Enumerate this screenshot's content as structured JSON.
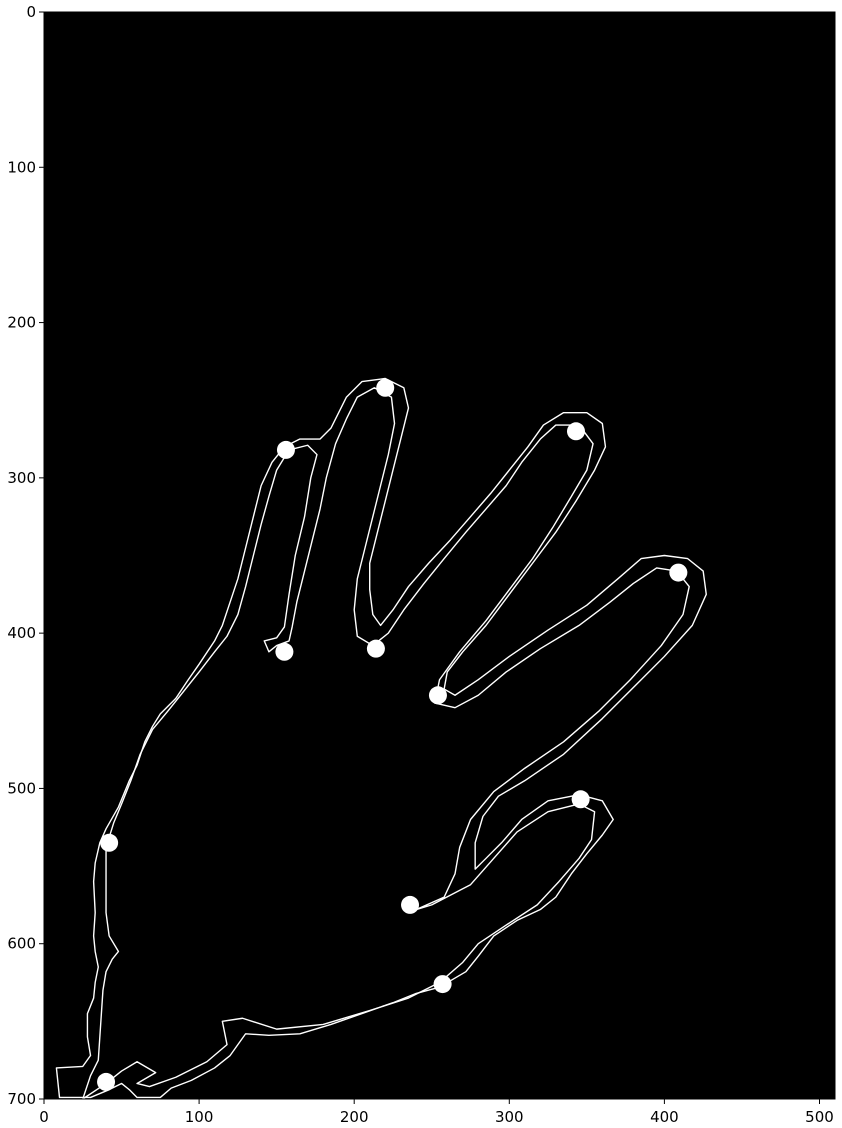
{
  "chart_data": {
    "type": "image",
    "background_color": "#000000",
    "contour_color": "#ffffff",
    "marker_color": "#ffffff",
    "xlim": [
      0,
      510
    ],
    "ylim": [
      700,
      0
    ],
    "x_ticks": [
      0,
      100,
      200,
      300,
      400,
      500
    ],
    "y_ticks": [
      0,
      100,
      200,
      300,
      400,
      500,
      600,
      700
    ],
    "grid": false,
    "outer_contour": [
      [
        10,
        699
      ],
      [
        8,
        680
      ],
      [
        25,
        679
      ],
      [
        30,
        672
      ],
      [
        28,
        660
      ],
      [
        28,
        645
      ],
      [
        32,
        635
      ],
      [
        33,
        625
      ],
      [
        35,
        615
      ],
      [
        33,
        605
      ],
      [
        32,
        595
      ],
      [
        33,
        580
      ],
      [
        32,
        560
      ],
      [
        33,
        548
      ],
      [
        36,
        535
      ],
      [
        40,
        526
      ],
      [
        48,
        512
      ],
      [
        55,
        495
      ],
      [
        60,
        485
      ],
      [
        65,
        470
      ],
      [
        70,
        460
      ],
      [
        75,
        452
      ],
      [
        85,
        442
      ],
      [
        93,
        430
      ],
      [
        100,
        420
      ],
      [
        110,
        405
      ],
      [
        115,
        395
      ],
      [
        120,
        380
      ],
      [
        125,
        365
      ],
      [
        130,
        345
      ],
      [
        135,
        325
      ],
      [
        140,
        305
      ],
      [
        147,
        290
      ],
      [
        155,
        280
      ],
      [
        165,
        275
      ],
      [
        178,
        275
      ],
      [
        185,
        268
      ],
      [
        195,
        248
      ],
      [
        205,
        238
      ],
      [
        220,
        236
      ],
      [
        232,
        242
      ],
      [
        235,
        255
      ],
      [
        230,
        275
      ],
      [
        225,
        295
      ],
      [
        220,
        315
      ],
      [
        215,
        335
      ],
      [
        210,
        355
      ],
      [
        210,
        372
      ],
      [
        212,
        388
      ],
      [
        217,
        395
      ],
      [
        225,
        385
      ],
      [
        235,
        370
      ],
      [
        248,
        355
      ],
      [
        262,
        340
      ],
      [
        275,
        325
      ],
      [
        288,
        310
      ],
      [
        300,
        295
      ],
      [
        312,
        280
      ],
      [
        322,
        266
      ],
      [
        335,
        258
      ],
      [
        350,
        258
      ],
      [
        360,
        265
      ],
      [
        362,
        280
      ],
      [
        355,
        295
      ],
      [
        343,
        315
      ],
      [
        330,
        335
      ],
      [
        315,
        355
      ],
      [
        300,
        375
      ],
      [
        285,
        395
      ],
      [
        270,
        412
      ],
      [
        260,
        425
      ],
      [
        258,
        436
      ],
      [
        265,
        440
      ],
      [
        280,
        430
      ],
      [
        300,
        415
      ],
      [
        325,
        398
      ],
      [
        350,
        382
      ],
      [
        370,
        365
      ],
      [
        385,
        352
      ],
      [
        400,
        350
      ],
      [
        415,
        352
      ],
      [
        425,
        360
      ],
      [
        427,
        375
      ],
      [
        418,
        395
      ],
      [
        400,
        415
      ],
      [
        380,
        435
      ],
      [
        360,
        455
      ],
      [
        335,
        478
      ],
      [
        310,
        495
      ],
      [
        293,
        505
      ],
      [
        283,
        518
      ],
      [
        278,
        535
      ],
      [
        278,
        552
      ],
      [
        285,
        545
      ],
      [
        295,
        535
      ],
      [
        308,
        520
      ],
      [
        325,
        508
      ],
      [
        345,
        504
      ],
      [
        360,
        508
      ],
      [
        367,
        520
      ],
      [
        360,
        530
      ],
      [
        350,
        542
      ],
      [
        340,
        555
      ],
      [
        330,
        570
      ],
      [
        320,
        578
      ],
      [
        305,
        585
      ],
      [
        290,
        595
      ],
      [
        280,
        608
      ],
      [
        272,
        618
      ],
      [
        255,
        628
      ],
      [
        240,
        632
      ],
      [
        225,
        638
      ],
      [
        205,
        645
      ],
      [
        185,
        652
      ],
      [
        165,
        658
      ],
      [
        145,
        659
      ],
      [
        130,
        658
      ],
      [
        125,
        665
      ],
      [
        120,
        672
      ],
      [
        110,
        680
      ],
      [
        95,
        688
      ],
      [
        82,
        693
      ],
      [
        75,
        699
      ],
      [
        60,
        699
      ],
      [
        55,
        694
      ],
      [
        50,
        690
      ],
      [
        42,
        694
      ],
      [
        30,
        699
      ],
      [
        10,
        699
      ]
    ],
    "inner_contour": [
      [
        25,
        700
      ],
      [
        40,
        690
      ],
      [
        50,
        682
      ],
      [
        60,
        676
      ],
      [
        72,
        683
      ],
      [
        60,
        690
      ],
      [
        68,
        692
      ],
      [
        85,
        686
      ],
      [
        105,
        676
      ],
      [
        118,
        665
      ],
      [
        115,
        650
      ],
      [
        128,
        648
      ],
      [
        150,
        655
      ],
      [
        180,
        652
      ],
      [
        210,
        643
      ],
      [
        235,
        635
      ],
      [
        255,
        625
      ],
      [
        270,
        612
      ],
      [
        280,
        600
      ],
      [
        298,
        588
      ],
      [
        318,
        575
      ],
      [
        332,
        560
      ],
      [
        345,
        545
      ],
      [
        353,
        533
      ],
      [
        355,
        515
      ],
      [
        345,
        510
      ],
      [
        325,
        515
      ],
      [
        305,
        528
      ],
      [
        290,
        545
      ],
      [
        275,
        562
      ],
      [
        250,
        575
      ],
      [
        240,
        578
      ],
      [
        258,
        570
      ],
      [
        265,
        555
      ],
      [
        268,
        538
      ],
      [
        275,
        520
      ],
      [
        290,
        502
      ],
      [
        310,
        487
      ],
      [
        335,
        470
      ],
      [
        358,
        450
      ],
      [
        378,
        430
      ],
      [
        398,
        408
      ],
      [
        412,
        388
      ],
      [
        416,
        370
      ],
      [
        408,
        360
      ],
      [
        395,
        358
      ],
      [
        380,
        368
      ],
      [
        365,
        380
      ],
      [
        345,
        395
      ],
      [
        320,
        410
      ],
      [
        298,
        425
      ],
      [
        280,
        440
      ],
      [
        265,
        448
      ],
      [
        252,
        445
      ],
      [
        255,
        430
      ],
      [
        268,
        412
      ],
      [
        285,
        392
      ],
      [
        300,
        372
      ],
      [
        315,
        352
      ],
      [
        328,
        332
      ],
      [
        340,
        312
      ],
      [
        350,
        295
      ],
      [
        354,
        278
      ],
      [
        345,
        266
      ],
      [
        330,
        266
      ],
      [
        320,
        275
      ],
      [
        308,
        290
      ],
      [
        298,
        305
      ],
      [
        285,
        320
      ],
      [
        272,
        335
      ],
      [
        258,
        352
      ],
      [
        245,
        368
      ],
      [
        232,
        385
      ],
      [
        222,
        400
      ],
      [
        212,
        408
      ],
      [
        202,
        402
      ],
      [
        200,
        385
      ],
      [
        202,
        365
      ],
      [
        207,
        345
      ],
      [
        212,
        325
      ],
      [
        217,
        305
      ],
      [
        222,
        285
      ],
      [
        226,
        265
      ],
      [
        224,
        248
      ],
      [
        213,
        242
      ],
      [
        202,
        248
      ],
      [
        195,
        262
      ],
      [
        188,
        278
      ],
      [
        182,
        300
      ],
      [
        178,
        320
      ],
      [
        173,
        340
      ],
      [
        168,
        360
      ],
      [
        163,
        380
      ],
      [
        160,
        396
      ],
      [
        158,
        405
      ],
      [
        150,
        408
      ],
      [
        145,
        412
      ],
      [
        142,
        405
      ],
      [
        150,
        403
      ],
      [
        155,
        396
      ],
      [
        158,
        375
      ],
      [
        162,
        350
      ],
      [
        168,
        325
      ],
      [
        172,
        300
      ],
      [
        176,
        285
      ],
      [
        170,
        279
      ],
      [
        158,
        282
      ],
      [
        150,
        295
      ],
      [
        145,
        312
      ],
      [
        140,
        330
      ],
      [
        135,
        350
      ],
      [
        130,
        370
      ],
      [
        125,
        388
      ],
      [
        118,
        402
      ],
      [
        110,
        412
      ],
      [
        100,
        425
      ],
      [
        88,
        440
      ],
      [
        80,
        450
      ],
      [
        70,
        462
      ],
      [
        62,
        478
      ],
      [
        56,
        495
      ],
      [
        50,
        510
      ],
      [
        45,
        522
      ],
      [
        40,
        538
      ],
      [
        40,
        560
      ],
      [
        40,
        580
      ],
      [
        42,
        595
      ],
      [
        48,
        605
      ],
      [
        44,
        610
      ],
      [
        40,
        618
      ],
      [
        38,
        630
      ],
      [
        37,
        645
      ],
      [
        36,
        660
      ],
      [
        35,
        675
      ],
      [
        30,
        685
      ],
      [
        25,
        700
      ]
    ],
    "points": [
      [
        220,
        242
      ],
      [
        156,
        282
      ],
      [
        343,
        270
      ],
      [
        409,
        361
      ],
      [
        155,
        412
      ],
      [
        214,
        410
      ],
      [
        254,
        440
      ],
      [
        346,
        507
      ],
      [
        42,
        535
      ],
      [
        236,
        575
      ],
      [
        257,
        626
      ],
      [
        40,
        689
      ]
    ]
  }
}
